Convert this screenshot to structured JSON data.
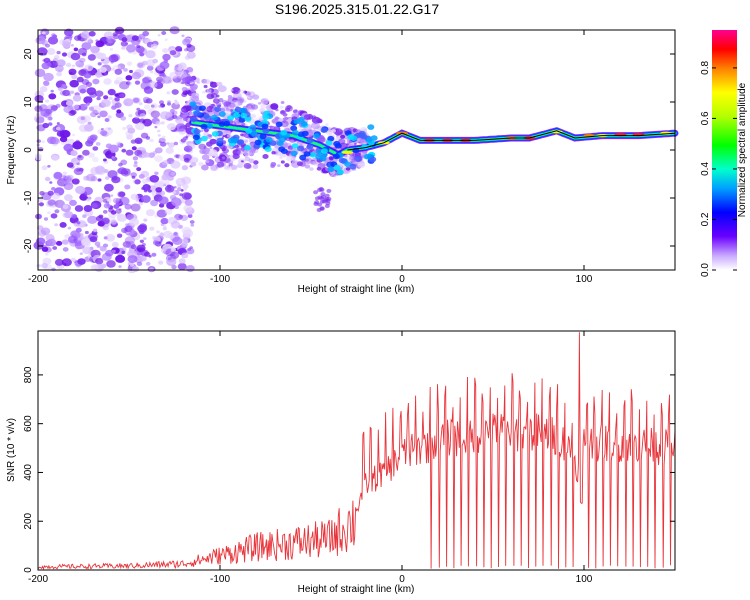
{
  "title": "S196.2025.315.01.22.G17",
  "colors": {
    "snr_line": "#e8343a",
    "frame": "#000000",
    "fit_line": "#000000"
  },
  "chart_data": [
    {
      "type": "heatmap",
      "name": "spectrogram",
      "xlabel": "Height of straight line (km)",
      "ylabel": "Frequency (Hz)",
      "xlim": [
        -200,
        150
      ],
      "ylim": [
        -25,
        25
      ],
      "xticks": [
        -200,
        -100,
        0,
        100
      ],
      "yticks": [
        -20,
        -10,
        0,
        10,
        20
      ],
      "frequency_trend": [
        {
          "x": -120,
          "y": 6
        },
        {
          "x": -100,
          "y": 5
        },
        {
          "x": -80,
          "y": 4
        },
        {
          "x": -60,
          "y": 3
        },
        {
          "x": -45,
          "y": 1
        },
        {
          "x": -35,
          "y": -1
        },
        {
          "x": -30,
          "y": 0
        },
        {
          "x": -20,
          "y": 0.5
        },
        {
          "x": -10,
          "y": 1.5
        },
        {
          "x": 0,
          "y": 3.5
        },
        {
          "x": 10,
          "y": 2
        },
        {
          "x": 20,
          "y": 2
        },
        {
          "x": 40,
          "y": 2
        },
        {
          "x": 60,
          "y": 2.5
        },
        {
          "x": 70,
          "y": 2.5
        },
        {
          "x": 85,
          "y": 4
        },
        {
          "x": 95,
          "y": 2.5
        },
        {
          "x": 110,
          "y": 3
        },
        {
          "x": 130,
          "y": 3
        },
        {
          "x": 150,
          "y": 3.5
        }
      ],
      "colorbar": {
        "label": "Normalized spectral amplitude",
        "range": [
          0,
          0.95
        ],
        "ticks": [
          "0.0",
          "0.2",
          "0.4",
          "0.6",
          "0.8"
        ],
        "tick_values": [
          0.0,
          0.2,
          0.4,
          0.6,
          0.8
        ]
      }
    },
    {
      "type": "line",
      "name": "snr",
      "xlabel": "Height of straight line (km)",
      "ylabel": "SNR (10 * v/v)",
      "xlim": [
        -200,
        150
      ],
      "ylim": [
        0,
        980
      ],
      "xticks": [
        -200,
        -100,
        0,
        100
      ],
      "yticks": [
        0,
        200,
        400,
        600,
        800
      ],
      "envelope": [
        {
          "x": -200,
          "y": 15
        },
        {
          "x": -150,
          "y": 20
        },
        {
          "x": -120,
          "y": 30
        },
        {
          "x": -100,
          "y": 70
        },
        {
          "x": -80,
          "y": 110
        },
        {
          "x": -60,
          "y": 130
        },
        {
          "x": -40,
          "y": 150
        },
        {
          "x": -25,
          "y": 250
        },
        {
          "x": -20,
          "y": 350
        },
        {
          "x": -10,
          "y": 400
        },
        {
          "x": 0,
          "y": 470
        },
        {
          "x": 10,
          "y": 500
        },
        {
          "x": 20,
          "y": 530
        },
        {
          "x": 40,
          "y": 560
        },
        {
          "x": 60,
          "y": 570
        },
        {
          "x": 80,
          "y": 560
        },
        {
          "x": 90,
          "y": 520
        },
        {
          "x": 98,
          "y": 400
        },
        {
          "x": 100,
          "y": 520
        },
        {
          "x": 120,
          "y": 520
        },
        {
          "x": 150,
          "y": 500
        }
      ]
    }
  ]
}
